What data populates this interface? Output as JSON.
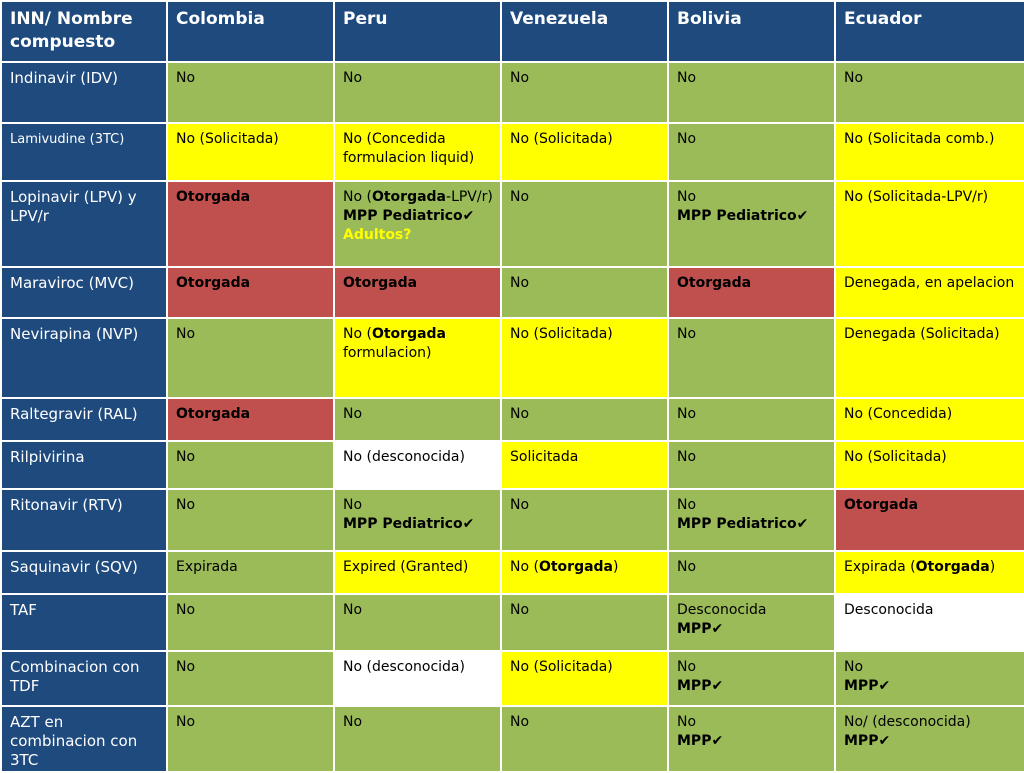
{
  "header": {
    "col0": "INN/ Nombre compuesto",
    "countries": [
      "Colombia",
      "Peru",
      "Venezuela",
      "Bolivia",
      "Ecuador"
    ]
  },
  "rows": [
    {
      "name": "Indinavir (IDV)",
      "colombia": "No",
      "peru": "No",
      "venezuela": "No",
      "bolivia": "No",
      "ecuador": "No"
    },
    {
      "name": "Lamivudine (3TC)",
      "colombia": "No (Solicitada)",
      "peru": "No (Concedida formulacion liquid)",
      "venezuela": "No (Solicitada)",
      "bolivia": "No",
      "ecuador": "No (Solicitada comb.)"
    },
    {
      "name": "Lopinavir (LPV) y LPV/r",
      "colombia": "Otorgada",
      "peru_a": "No (",
      "peru_b": "Otorgada",
      "peru_c": "-LPV/r)",
      "peru_d": "MPP Pediatrico✔",
      "peru_e": "Adultos?",
      "venezuela": "No",
      "bolivia_a": "No",
      "bolivia_b": "MPP Pediatrico✔",
      "ecuador": "No (Solicitada-LPV/r)"
    },
    {
      "name": "Maraviroc (MVC)",
      "colombia": "Otorgada",
      "peru": "Otorgada",
      "venezuela": "No",
      "bolivia": "Otorgada",
      "ecuador": "Denegada, en apelacion"
    },
    {
      "name": "Nevirapina (NVP)",
      "colombia": "No",
      "peru_a": "No (",
      "peru_b": "Otorgada",
      "peru_c": "formulacion)",
      "venezuela": "No (Solicitada)",
      "bolivia": "No",
      "ecuador": "Denegada (Solicitada)"
    },
    {
      "name": "Raltegravir (RAL)",
      "colombia": "Otorgada",
      "peru": "No",
      "venezuela": "No",
      "bolivia": "No",
      "ecuador": "No (Concedida)"
    },
    {
      "name": "Rilpivirina",
      "colombia": "No",
      "peru": "No (desconocida)",
      "venezuela": "Solicitada",
      "bolivia": "No",
      "ecuador": "No (Solicitada)"
    },
    {
      "name": "Ritonavir (RTV)",
      "colombia": "No",
      "peru_a": "No",
      "peru_b": "MPP Pediatrico✔",
      "venezuela": "No",
      "bolivia_a": "No",
      "bolivia_b": "MPP Pediatrico✔",
      "ecuador": "Otorgada"
    },
    {
      "name": "Saquinavir (SQV)",
      "colombia": "Expirada",
      "peru": "Expired (Granted)",
      "venezuela_a": "No (",
      "venezuela_b": "Otorgada",
      "venezuela_c": ")",
      "bolivia": "No",
      "ecuador_a": "Expirada (",
      "ecuador_b": "Otorgada",
      "ecuador_c": ")"
    },
    {
      "name": "TAF",
      "colombia": "No",
      "peru": "No",
      "venezuela": "No",
      "bolivia_a": "Desconocida",
      "bolivia_b": "MPP✔",
      "ecuador": "Desconocida"
    },
    {
      "name": "Combinacion con TDF",
      "colombia": "No",
      "peru": "No (desconocida)",
      "venezuela": "No (Solicitada)",
      "bolivia_a": "No",
      "bolivia_b": "MPP✔",
      "ecuador_a": "No",
      "ecuador_b": "MPP✔"
    },
    {
      "name": "AZT en combinacion con 3TC",
      "colombia": "No",
      "peru": "No",
      "venezuela": "No",
      "bolivia_a": "No",
      "bolivia_b": "MPP✔",
      "ecuador_a": "No/ (desconocida)",
      "ecuador_b": "MPP✔"
    }
  ],
  "colors": {
    "header_blue": "#1f4a7d",
    "green": "#9bbb59",
    "yellow": "#ffff00",
    "red": "#c0504d",
    "white": "#ffffff"
  }
}
